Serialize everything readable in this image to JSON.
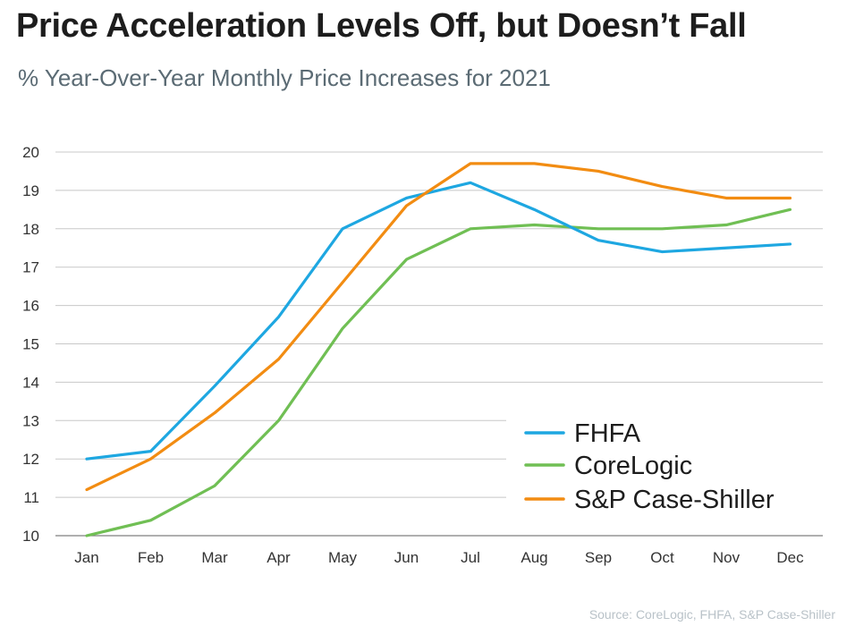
{
  "title": "Price Acceleration Levels Off, but Doesn’t Fall",
  "subtitle": "% Year-Over-Year Monthly Price Increases for 2021",
  "source": "Source: CoreLogic, FHFA, S&P Case-Shiller",
  "chart_data": {
    "type": "line",
    "title": "Price Acceleration Levels Off, but Doesn’t Fall",
    "subtitle": "% Year-Over-Year Monthly Price Increases for 2021",
    "categories": [
      "Jan",
      "Feb",
      "Mar",
      "Apr",
      "May",
      "Jun",
      "Jul",
      "Aug",
      "Sep",
      "Oct",
      "Nov",
      "Dec"
    ],
    "ylim": [
      10,
      20
    ],
    "yticks": [
      10,
      11,
      12,
      13,
      14,
      15,
      16,
      17,
      18,
      19,
      20
    ],
    "grid": true,
    "legend_position": "bottom-right",
    "series": [
      {
        "name": "FHFA",
        "color": "#1ea7e1",
        "values": [
          12.0,
          12.2,
          13.9,
          15.7,
          18.0,
          18.8,
          19.2,
          18.5,
          17.7,
          17.4,
          17.5,
          17.6
        ]
      },
      {
        "name": "CoreLogic",
        "color": "#70bf54",
        "values": [
          10.0,
          10.4,
          11.3,
          13.0,
          15.4,
          17.2,
          18.0,
          18.1,
          18.0,
          18.0,
          18.1,
          18.5
        ]
      },
      {
        "name": "S&P Case-Shiller",
        "color": "#f28c12",
        "values": [
          11.2,
          12.0,
          13.2,
          14.6,
          16.6,
          18.6,
          19.7,
          19.7,
          19.5,
          19.1,
          18.8,
          18.8
        ]
      }
    ]
  }
}
